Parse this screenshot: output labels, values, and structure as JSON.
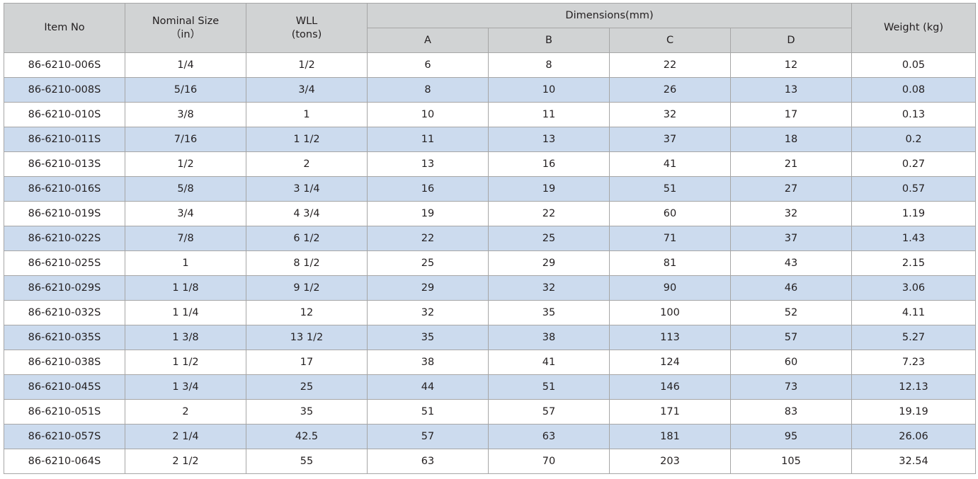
{
  "headers": {
    "item_no": "Item No",
    "nominal_size": "Nominal Size",
    "nominal_unit": "（in）",
    "wll": "WLL",
    "wll_unit": "(tons)",
    "dimensions": "Dimensions(mm)",
    "dim_a": "A",
    "dim_b": "B",
    "dim_c": "C",
    "dim_d": "D",
    "weight": "Weight (kg)"
  },
  "colors": {
    "header_bg": "#d1d3d4",
    "stripe_bg": "#ccdbee",
    "border": "#a6a6a6"
  },
  "rows": [
    [
      "86-6210-006S",
      "1/4",
      "1/2",
      "6",
      "8",
      "22",
      "12",
      "0.05"
    ],
    [
      "86-6210-008S",
      "5/16",
      "3/4",
      "8",
      "10",
      "26",
      "13",
      "0.08"
    ],
    [
      "86-6210-010S",
      "3/8",
      "1",
      "10",
      "11",
      "32",
      "17",
      "0.13"
    ],
    [
      "86-6210-011S",
      "7/16",
      "1 1/2",
      "11",
      "13",
      "37",
      "18",
      "0.2"
    ],
    [
      "86-6210-013S",
      "1/2",
      "2",
      "13",
      "16",
      "41",
      "21",
      "0.27"
    ],
    [
      "86-6210-016S",
      "5/8",
      "3 1/4",
      "16",
      "19",
      "51",
      "27",
      "0.57"
    ],
    [
      "86-6210-019S",
      "3/4",
      "4 3/4",
      "19",
      "22",
      "60",
      "32",
      "1.19"
    ],
    [
      "86-6210-022S",
      "7/8",
      "6 1/2",
      "22",
      "25",
      "71",
      "37",
      "1.43"
    ],
    [
      "86-6210-025S",
      "1",
      "8 1/2",
      "25",
      "29",
      "81",
      "43",
      "2.15"
    ],
    [
      "86-6210-029S",
      "1 1/8",
      "9 1/2",
      "29",
      "32",
      "90",
      "46",
      "3.06"
    ],
    [
      "86-6210-032S",
      "1 1/4",
      "12",
      "32",
      "35",
      "100",
      "52",
      "4.11"
    ],
    [
      "86-6210-035S",
      "1 3/8",
      "13 1/2",
      "35",
      "38",
      "113",
      "57",
      "5.27"
    ],
    [
      "86-6210-038S",
      "1 1/2",
      "17",
      "38",
      "41",
      "124",
      "60",
      "7.23"
    ],
    [
      "86-6210-045S",
      "1 3/4",
      "25",
      "44",
      "51",
      "146",
      "73",
      "12.13"
    ],
    [
      "86-6210-051S",
      "2",
      "35",
      "51",
      "57",
      "171",
      "83",
      "19.19"
    ],
    [
      "86-6210-057S",
      "2 1/4",
      "42.5",
      "57",
      "63",
      "181",
      "95",
      "26.06"
    ],
    [
      "86-6210-064S",
      "2 1/2",
      "55",
      "63",
      "70",
      "203",
      "105",
      "32.54"
    ]
  ]
}
